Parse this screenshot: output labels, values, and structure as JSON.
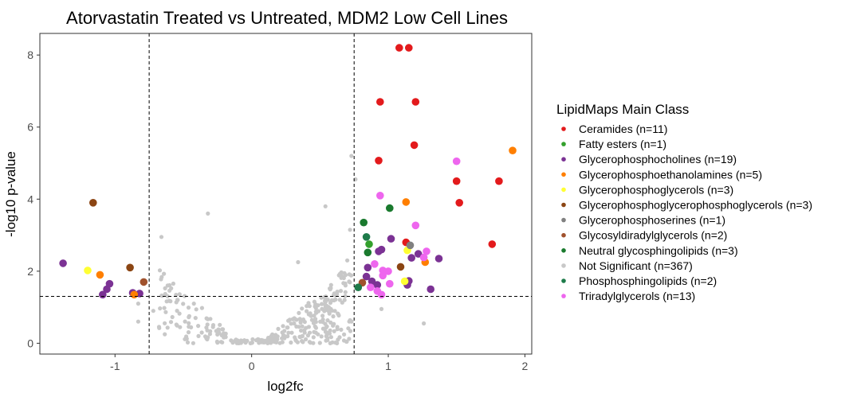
{
  "chart_data": {
    "type": "scatter",
    "title": "Atorvastatin Treated vs Untreated, MDM2 Low Cell Lines",
    "xlabel": "log2fc",
    "ylabel": "-log10 p-value",
    "xlim": [
      -1.55,
      2.05
    ],
    "ylim": [
      -0.3,
      8.6
    ],
    "x_ticks": [
      -1,
      0,
      1,
      2
    ],
    "x_tick_labels": [
      "-1",
      "0",
      "1",
      "2"
    ],
    "y_ticks": [
      0,
      2,
      4,
      6,
      8
    ],
    "y_tick_labels": [
      "0",
      "2",
      "4",
      "6",
      "8"
    ],
    "threshold_lines": {
      "x": [
        -0.75,
        0.75
      ],
      "y": [
        1.3
      ]
    },
    "grid": false,
    "legend": {
      "title": "LipidMaps Main Class",
      "position": "right",
      "entries": [
        {
          "label": "Ceramides (n=11)",
          "color": "#e31a1c"
        },
        {
          "label": "Fatty esters (n=1)",
          "color": "#33a02c"
        },
        {
          "label": "Glycerophosphocholines (n=19)",
          "color": "#7b3294"
        },
        {
          "label": "Glycerophosphoethanolamines (n=5)",
          "color": "#ff7f00"
        },
        {
          "label": "Glycerophosphoglycerols (n=3)",
          "color": "#ffff33"
        },
        {
          "label": "Glycerophosphoglycerophosphoglycerols (n=3)",
          "color": "#8b4513"
        },
        {
          "label": "Glycerophosphoserines (n=1)",
          "color": "#808080"
        },
        {
          "label": "Glycosyldiradylglycerols (n=2)",
          "color": "#a0522d"
        },
        {
          "label": "Neutral glycosphingolipids (n=3)",
          "color": "#1a7a2e"
        },
        {
          "label": "Not Significant (n=367)",
          "color": "#c8c8c8"
        },
        {
          "label": "Phosphosphingolipids (n=2)",
          "color": "#1e7b4a"
        },
        {
          "label": "Triradylglycerols (n=13)",
          "color": "#ee66ee"
        }
      ]
    },
    "series": [
      {
        "name": "Ceramides (n=11)",
        "color": "#e31a1c",
        "points": [
          [
            1.08,
            8.2
          ],
          [
            1.15,
            8.2
          ],
          [
            0.94,
            6.7
          ],
          [
            1.2,
            6.7
          ],
          [
            1.19,
            5.5
          ],
          [
            0.93,
            5.07
          ],
          [
            1.5,
            4.5
          ],
          [
            1.81,
            4.5
          ],
          [
            1.52,
            3.9
          ],
          [
            1.13,
            2.8
          ],
          [
            1.76,
            2.75
          ]
        ]
      },
      {
        "name": "Fatty esters (n=1)",
        "color": "#33a02c",
        "points": [
          [
            0.86,
            2.75
          ]
        ]
      },
      {
        "name": "Glycerophosphocholines (n=19)",
        "color": "#7b3294",
        "points": [
          [
            -1.38,
            2.22
          ],
          [
            -1.04,
            1.65
          ],
          [
            -1.06,
            1.5
          ],
          [
            -0.87,
            1.4
          ],
          [
            -1.09,
            1.35
          ],
          [
            -0.82,
            1.38
          ],
          [
            0.85,
            2.1
          ],
          [
            0.93,
            2.55
          ],
          [
            0.95,
            2.6
          ],
          [
            1.02,
            2.9
          ],
          [
            1.17,
            2.37
          ],
          [
            1.22,
            2.48
          ],
          [
            1.37,
            2.35
          ],
          [
            0.84,
            1.85
          ],
          [
            0.88,
            1.72
          ],
          [
            0.92,
            1.62
          ],
          [
            1.15,
            1.73
          ],
          [
            1.14,
            1.62
          ],
          [
            1.31,
            1.5
          ]
        ]
      },
      {
        "name": "Glycerophosphoethanolamines (n=5)",
        "color": "#ff7f00",
        "points": [
          [
            -1.11,
            1.9
          ],
          [
            -0.86,
            1.35
          ],
          [
            1.13,
            3.92
          ],
          [
            1.91,
            5.35
          ],
          [
            1.27,
            2.25
          ]
        ]
      },
      {
        "name": "Glycerophosphoglycerols (n=3)",
        "color": "#ffff33",
        "points": [
          [
            -1.2,
            2.02
          ],
          [
            1.14,
            2.58
          ],
          [
            1.12,
            1.72
          ]
        ]
      },
      {
        "name": "Glycerophosphoglycerophosphoglycerols (n=3)",
        "color": "#8b4513",
        "points": [
          [
            -1.16,
            3.9
          ],
          [
            -0.89,
            2.1
          ],
          [
            1.09,
            2.12
          ]
        ]
      },
      {
        "name": "Glycerophosphoserines (n=1)",
        "color": "#808080",
        "points": [
          [
            1.16,
            2.72
          ]
        ]
      },
      {
        "name": "Glycosyldiradylglycerols (n=2)",
        "color": "#a0522d",
        "points": [
          [
            -0.79,
            1.7
          ],
          [
            0.81,
            1.68
          ]
        ]
      },
      {
        "name": "Neutral glycosphingolipids (n=3)",
        "color": "#1a7a2e",
        "points": [
          [
            0.82,
            3.35
          ],
          [
            1.01,
            3.75
          ],
          [
            0.85,
            2.52
          ]
        ]
      },
      {
        "name": "Phosphosphingolipids (n=2)",
        "color": "#1e7b4a",
        "points": [
          [
            0.84,
            2.95
          ],
          [
            0.78,
            1.55
          ]
        ]
      },
      {
        "name": "Triradylglycerols (n=13)",
        "color": "#ee66ee",
        "points": [
          [
            0.94,
            4.1
          ],
          [
            1.5,
            5.05
          ],
          [
            1.2,
            3.27
          ],
          [
            1.26,
            2.38
          ],
          [
            1.28,
            2.55
          ],
          [
            0.96,
            2.02
          ],
          [
            1.0,
            2.0
          ],
          [
            0.9,
            2.2
          ],
          [
            0.96,
            1.88
          ],
          [
            1.01,
            1.65
          ],
          [
            0.87,
            1.55
          ],
          [
            0.92,
            1.45
          ],
          [
            0.95,
            1.35
          ]
        ]
      }
    ],
    "not_significant": {
      "name": "Not Significant (n=367)",
      "color": "#c8c8c8",
      "count": 367,
      "seed": 7,
      "fixed_points": [
        [
          -0.66,
          2.95
        ],
        [
          -0.32,
          3.6
        ],
        [
          0.54,
          3.8
        ],
        [
          0.73,
          5.2
        ],
        [
          0.76,
          4.55
        ],
        [
          0.72,
          3.15
        ],
        [
          -0.83,
          1.1
        ],
        [
          -0.72,
          0.9
        ],
        [
          -0.83,
          0.6
        ],
        [
          0.95,
          0.95
        ],
        [
          1.26,
          0.55
        ],
        [
          0.68,
          1.2
        ],
        [
          0.7,
          2.3
        ],
        [
          0.34,
          2.25
        ]
      ]
    }
  }
}
